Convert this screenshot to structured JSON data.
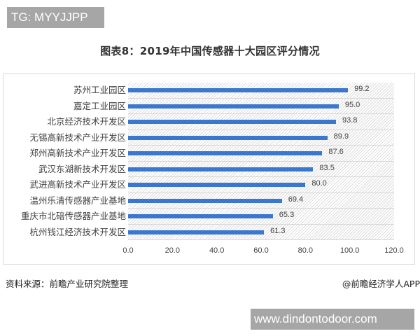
{
  "badges": {
    "top_left": "TG: MYYJJPP",
    "bottom_right": "www.dindontodoor.com"
  },
  "title": "图表8：2019年中国传感器十大园区评分情况",
  "footer": {
    "source": "资料来源：前瞻产业研究院整理",
    "credit": "@前瞻经济学人APP"
  },
  "colors": {
    "bar": "#3a77cf",
    "text": "#404040"
  },
  "chart_data": {
    "type": "bar",
    "orientation": "horizontal",
    "title": "图表8：2019年中国传感器十大园区评分情况",
    "xlabel": "",
    "ylabel": "",
    "xlim": [
      0,
      120
    ],
    "x_ticks": [
      "0.0",
      "20.0",
      "40.0",
      "60.0",
      "80.0",
      "100.0",
      "120.0"
    ],
    "grid": true,
    "legend": null,
    "categories": [
      "苏州工业园区",
      "嘉定工业园区",
      "北京经济技术开发区",
      "无锡高新技术产业开发区",
      "郑州高新技术产业开发区",
      "武汉东湖新技术开发区",
      "武进高新技术产业开发区",
      "温州乐清传感器产业基地",
      "重庆市北碚传感器产业基地",
      "杭州钱江经济技术开发区"
    ],
    "values": [
      99.2,
      95.0,
      93.8,
      89.9,
      87.6,
      83.5,
      80.0,
      69.4,
      65.3,
      61.3
    ],
    "value_labels": [
      "99.2",
      "95.0",
      "93.8",
      "89.9",
      "87.6",
      "83.5",
      "80.0",
      "69.4",
      "65.3",
      "61.3"
    ]
  }
}
